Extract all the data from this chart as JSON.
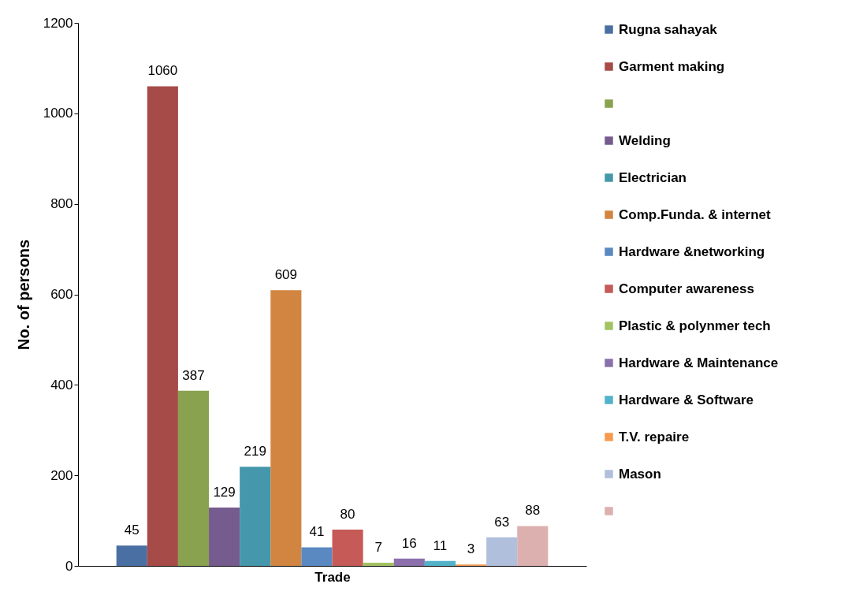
{
  "chart_data": {
    "type": "bar",
    "categories": [
      null
    ],
    "xlabel": "Trade",
    "ylabel": "No. of persons",
    "ylim": [
      0,
      1200
    ],
    "yticks": [
      0,
      200,
      400,
      600,
      800,
      1000,
      1200
    ],
    "grid": false,
    "legend": "right",
    "data_labels": true,
    "series": [
      {
        "name": "Rugna sahayak",
        "color": "#4a6fa3",
        "values": [
          45
        ]
      },
      {
        "name": "Garment making",
        "color": "#a64b48",
        "values": [
          1060
        ]
      },
      {
        "color": "#89a24f",
        "values": [
          387
        ]
      },
      {
        "name": "Welding",
        "color": "#755b8e",
        "values": [
          129
        ]
      },
      {
        "name": "Electrician",
        "color": "#4597ab",
        "values": [
          219
        ]
      },
      {
        "name": "Comp.Funda. & internet",
        "color": "#d18540",
        "values": [
          609
        ]
      },
      {
        "name": "Hardware &networking",
        "color": "#5a89c2",
        "values": [
          41
        ]
      },
      {
        "name": "Computer awareness",
        "color": "#c65a56",
        "values": [
          80
        ]
      },
      {
        "name": "Plastic & polynmer tech",
        "color": "#a3c263",
        "values": [
          7
        ]
      },
      {
        "name": "Hardware & Maintenance",
        "color": "#8b70ab",
        "values": [
          16
        ]
      },
      {
        "name": "Hardware & Software",
        "color": "#52b2c9",
        "values": [
          11
        ]
      },
      {
        "name": "T.V. repaire",
        "color": "#f79a50",
        "values": [
          3
        ]
      },
      {
        "name": "Mason",
        "color": "#b0c0dc",
        "values": [
          63
        ]
      },
      {
        "color": "#ddb0b0",
        "values": [
          88
        ]
      }
    ]
  }
}
